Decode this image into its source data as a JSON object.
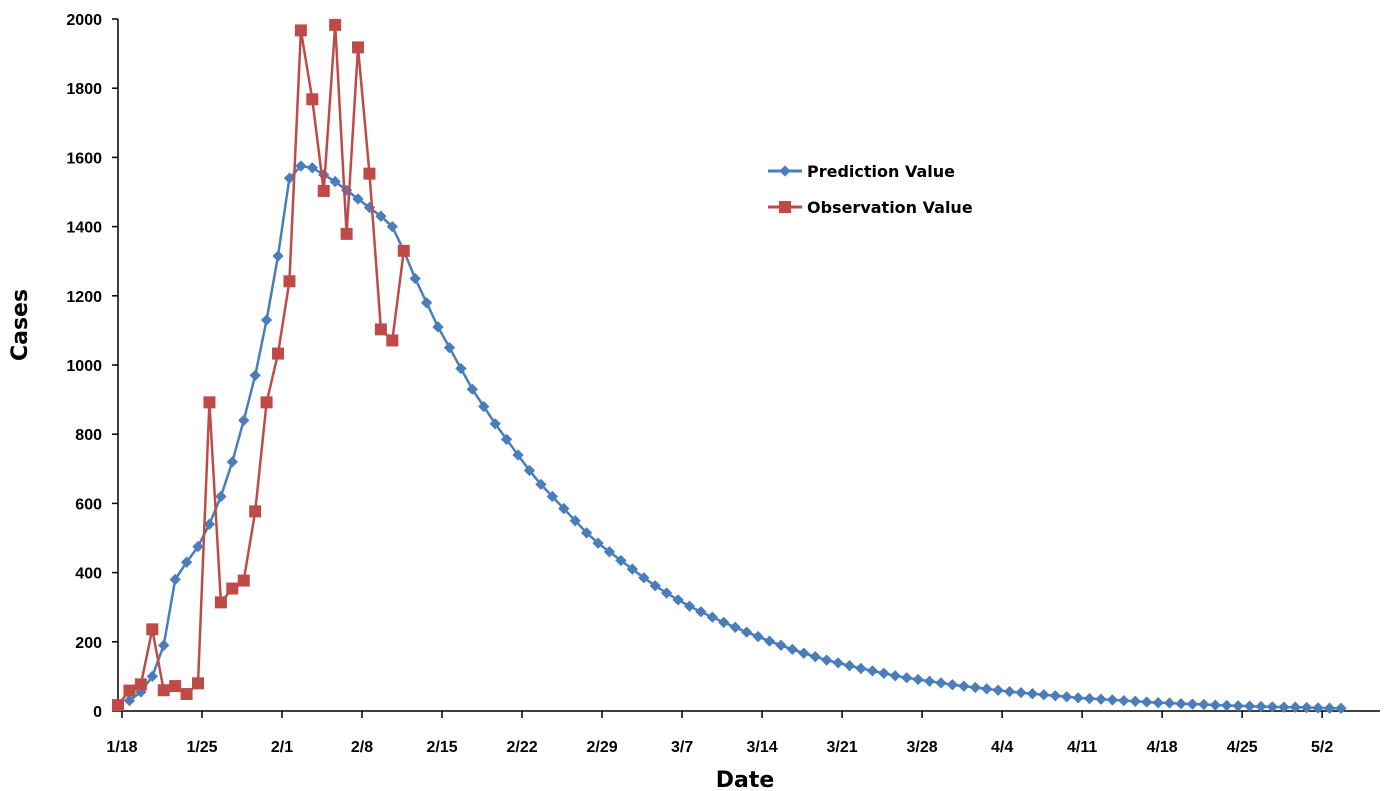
{
  "chart_data": {
    "type": "line",
    "title": "",
    "xlabel": "Date",
    "ylabel": "Cases",
    "ylim": [
      0,
      2000
    ],
    "y_ticks": [
      "0",
      "200",
      "400",
      "600",
      "800",
      "1000",
      "1200",
      "1400",
      "1600",
      "1800",
      "2000"
    ],
    "x_ticks": [
      "1/18",
      "1/25",
      "2/1",
      "2/8",
      "2/15",
      "2/22",
      "2/29",
      "3/7",
      "3/14",
      "3/21",
      "3/28",
      "4/4",
      "4/11",
      "4/18",
      "4/25",
      "5/2"
    ],
    "x_start_date": "1/18",
    "x_end_date": "5/6",
    "grid": false,
    "legend_position": "upper-right",
    "series": [
      {
        "name": "Prediction Value",
        "color": "#4a7ebb",
        "marker": "diamond",
        "start_date": "1/19",
        "values": [
          30,
          55,
          100,
          190,
          380,
          430,
          475,
          540,
          620,
          720,
          840,
          970,
          1130,
          1315,
          1540,
          1575,
          1570,
          1550,
          1530,
          1505,
          1480,
          1455,
          1430,
          1400,
          1330,
          1250,
          1180,
          1110,
          1050,
          990,
          930,
          880,
          830,
          785,
          740,
          695,
          655,
          620,
          585,
          550,
          515,
          485,
          460,
          435,
          410,
          385,
          362,
          341,
          321,
          303,
          287,
          271,
          256,
          242,
          228,
          215,
          202,
          190,
          178,
          167,
          157,
          147,
          139,
          131,
          123,
          116,
          109,
          102,
          96,
          91,
          86,
          81,
          76,
          72,
          68,
          64,
          60,
          56,
          53,
          50,
          47,
          44,
          41,
          38,
          36,
          34,
          32,
          30,
          28,
          26,
          24,
          23,
          21,
          20,
          19,
          17,
          16,
          15,
          14,
          13,
          12,
          11,
          11,
          10,
          9,
          8,
          8
        ]
      },
      {
        "name": "Observation Value",
        "color": "#be4b48",
        "marker": "square",
        "start_date": "1/18",
        "values": [
          17,
          59,
          77,
          236,
          60,
          72,
          49,
          80,
          892,
          314,
          354,
          377,
          577,
          892,
          1033,
          1242,
          1967,
          1768,
          1503,
          1983,
          1379,
          1918,
          1553,
          1103,
          1071,
          1330
        ]
      }
    ]
  }
}
